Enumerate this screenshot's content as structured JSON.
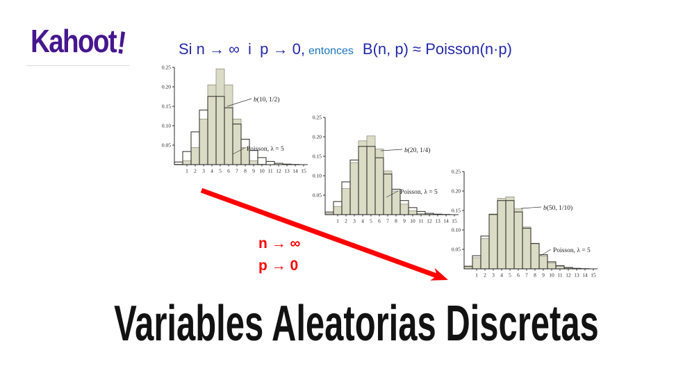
{
  "logo": {
    "word": "Kahoot",
    "bang": "!",
    "color": "#46178F"
  },
  "headline": {
    "condition": "Si n → ∞  i  p → 0,",
    "connector": "entonces",
    "conclusion": "B(n, p) ≈ Poisson(n·p)",
    "dark_blue": "#2429A8",
    "light_blue": "#1B75BC"
  },
  "limits": {
    "n": "n → ∞",
    "p": "p → 0",
    "color": "#fe0000"
  },
  "main_title": "Variables Aleatorias Discretas",
  "chart_colors": {
    "binomial_fill": "#DBDCC6",
    "binomial_stroke": "#8F907E",
    "poisson_stroke": "#3A3A32",
    "axis": "#2b2b2b",
    "tick_text": "#222222"
  },
  "chart_data": [
    {
      "type": "bar",
      "label": "b(10, 1/2)",
      "poisson_label": "Poisson,  λ = 5",
      "x": [
        0,
        1,
        2,
        3,
        4,
        5,
        6,
        7,
        8,
        9,
        10,
        11,
        12,
        13,
        14,
        15
      ],
      "xticks": [
        1,
        2,
        3,
        4,
        5,
        6,
        7,
        8,
        9,
        10,
        11,
        12,
        13,
        14,
        15
      ],
      "ylim": [
        0,
        0.25
      ],
      "yticks": [
        0.05,
        0.1,
        0.15,
        0.2,
        0.25
      ],
      "series": [
        {
          "name": "b(10, 1/2)",
          "values": [
            0.001,
            0.0098,
            0.0439,
            0.1172,
            0.2051,
            0.2461,
            0.2051,
            0.1172,
            0.0439,
            0.0098,
            0.001,
            0,
            0,
            0,
            0,
            0
          ]
        },
        {
          "name": "Poisson, λ = 5",
          "values": [
            0.0067,
            0.0337,
            0.0842,
            0.1404,
            0.1755,
            0.1755,
            0.1462,
            0.1044,
            0.0653,
            0.0363,
            0.0181,
            0.0082,
            0.0034,
            0.0013,
            0.0005,
            0.0002
          ]
        }
      ]
    },
    {
      "type": "bar",
      "label": "b(20, 1/4)",
      "poisson_label": "Poisson,  λ = 5",
      "x": [
        0,
        1,
        2,
        3,
        4,
        5,
        6,
        7,
        8,
        9,
        10,
        11,
        12,
        13,
        14,
        15
      ],
      "xticks": [
        1,
        2,
        3,
        4,
        5,
        6,
        7,
        8,
        9,
        10,
        11,
        12,
        13,
        14,
        15
      ],
      "ylim": [
        0,
        0.25
      ],
      "yticks": [
        0.05,
        0.1,
        0.15,
        0.2,
        0.25
      ],
      "series": [
        {
          "name": "b(20, 1/4)",
          "values": [
            0.0032,
            0.0211,
            0.0669,
            0.1339,
            0.1897,
            0.2023,
            0.1686,
            0.1124,
            0.0609,
            0.0271,
            0.0099,
            0.003,
            0.0008,
            0.0002,
            0,
            0
          ]
        },
        {
          "name": "Poisson, λ = 5",
          "values": [
            0.0067,
            0.0337,
            0.0842,
            0.1404,
            0.1755,
            0.1755,
            0.1462,
            0.1044,
            0.0653,
            0.0363,
            0.0181,
            0.0082,
            0.0034,
            0.0013,
            0.0005,
            0.0002
          ]
        }
      ]
    },
    {
      "type": "bar",
      "label": "b(50, 1/10)",
      "poisson_label": "Poisson,  λ = 5",
      "x": [
        0,
        1,
        2,
        3,
        4,
        5,
        6,
        7,
        8,
        9,
        10,
        11,
        12,
        13,
        14,
        15
      ],
      "xticks": [
        1,
        2,
        3,
        4,
        5,
        6,
        7,
        8,
        9,
        10,
        11,
        12,
        13,
        14,
        15
      ],
      "ylim": [
        0,
        0.25
      ],
      "yticks": [
        0.05,
        0.1,
        0.15,
        0.2,
        0.25
      ],
      "series": [
        {
          "name": "b(50, 1/10)",
          "values": [
            0.0052,
            0.0286,
            0.0779,
            0.1386,
            0.1809,
            0.1849,
            0.1541,
            0.1076,
            0.0643,
            0.0333,
            0.0152,
            0.0061,
            0.0022,
            0.0007,
            0.0002,
            0.0001
          ]
        },
        {
          "name": "Poisson, λ = 5",
          "values": [
            0.0067,
            0.0337,
            0.0842,
            0.1404,
            0.1755,
            0.1755,
            0.1462,
            0.1044,
            0.0653,
            0.0363,
            0.0181,
            0.0082,
            0.0034,
            0.0013,
            0.0005,
            0.0002
          ]
        }
      ]
    }
  ]
}
